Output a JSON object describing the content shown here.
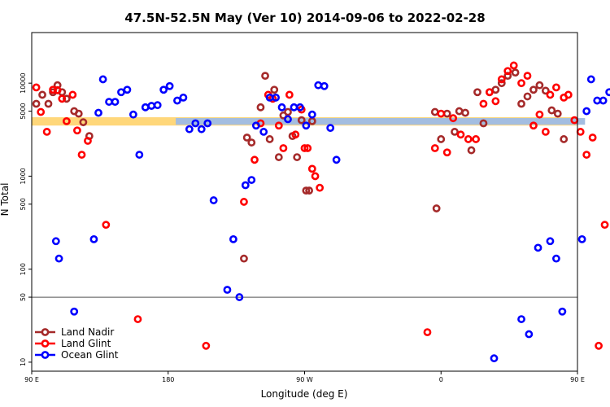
{
  "chart_data": {
    "type": "scatter",
    "title": "47.5N-52.5N May (Ver 10)   2014-09-06 to 2022-02-28",
    "xlabel": "Longitude (deg E)",
    "ylabel": "N Total",
    "x_scale": "linear",
    "y_scale": "log",
    "xlim": [
      90,
      450
    ],
    "ylim": [
      8,
      35000
    ],
    "x_ticks": [
      {
        "value": 90,
        "label": "90 E"
      },
      {
        "value": 180,
        "label": "180"
      },
      {
        "value": 270,
        "label": "90 W"
      },
      {
        "value": 360,
        "label": "0"
      },
      {
        "value": 450,
        "label": "90 E"
      },
      {
        "value": 540,
        "label": "180"
      }
    ],
    "y_ticks": [
      {
        "value": 10,
        "label": "10"
      },
      {
        "value": 50,
        "label": "50"
      },
      {
        "value": 100,
        "label": "100"
      },
      {
        "value": 500,
        "label": "500"
      },
      {
        "value": 1000,
        "label": "1000"
      },
      {
        "value": 5000,
        "label": "5000"
      },
      {
        "value": 10000,
        "label": "10000"
      }
    ],
    "reference_line": 50,
    "band": {
      "y_low": 3500,
      "y_high": 4300,
      "colors": [
        "#ffd77a",
        "#a3bde0"
      ]
    },
    "legend_position": "bottom-left",
    "series": [
      {
        "name": "Land Nadir",
        "color": "#a52a2a",
        "points": [
          [
            93,
            6000
          ],
          [
            97,
            7500
          ],
          [
            101,
            6000
          ],
          [
            104,
            8000
          ],
          [
            107,
            9500
          ],
          [
            110,
            8000
          ],
          [
            113,
            6800
          ],
          [
            118,
            5000
          ],
          [
            121,
            4700
          ],
          [
            124,
            3800
          ],
          [
            128,
            2700
          ],
          [
            230,
            130
          ],
          [
            232,
            2600
          ],
          [
            235,
            2300
          ],
          [
            241,
            5500
          ],
          [
            244,
            12000
          ],
          [
            247,
            2500
          ],
          [
            250,
            8500
          ],
          [
            253,
            1600
          ],
          [
            256,
            4500
          ],
          [
            259,
            4900
          ],
          [
            262,
            2700
          ],
          [
            265,
            1600
          ],
          [
            268,
            4000
          ],
          [
            271,
            700
          ],
          [
            273,
            700
          ],
          [
            275,
            3900
          ],
          [
            356,
            4900
          ],
          [
            357,
            450
          ],
          [
            360,
            2500
          ],
          [
            364,
            4700
          ],
          [
            369,
            3000
          ],
          [
            372,
            5000
          ],
          [
            376,
            4800
          ],
          [
            380,
            1900
          ],
          [
            384,
            8000
          ],
          [
            388,
            3700
          ],
          [
            392,
            8000
          ],
          [
            396,
            8500
          ],
          [
            400,
            10000
          ],
          [
            404,
            12000
          ],
          [
            409,
            13000
          ],
          [
            413,
            6000
          ],
          [
            417,
            7200
          ],
          [
            421,
            8500
          ],
          [
            425,
            9500
          ],
          [
            429,
            8300
          ],
          [
            433,
            5100
          ],
          [
            437,
            4700
          ],
          [
            441,
            2500
          ]
        ]
      },
      {
        "name": "Land Glint",
        "color": "#ff0000",
        "points": [
          [
            93,
            9000
          ],
          [
            96,
            4900
          ],
          [
            100,
            3000
          ],
          [
            104,
            8500
          ],
          [
            107,
            8400
          ],
          [
            110,
            6800
          ],
          [
            113,
            3900
          ],
          [
            117,
            7500
          ],
          [
            120,
            3100
          ],
          [
            123,
            1700
          ],
          [
            127,
            2400
          ],
          [
            139,
            300
          ],
          [
            160,
            29
          ],
          [
            205,
            15
          ],
          [
            230,
            530
          ],
          [
            237,
            1500
          ],
          [
            241,
            3700
          ],
          [
            246,
            7500
          ],
          [
            249,
            6800
          ],
          [
            253,
            3500
          ],
          [
            256,
            2000
          ],
          [
            260,
            7500
          ],
          [
            264,
            2800
          ],
          [
            268,
            5200
          ],
          [
            270,
            2000
          ],
          [
            272,
            2000
          ],
          [
            275,
            1200
          ],
          [
            277,
            1000
          ],
          [
            280,
            750
          ],
          [
            351,
            21
          ],
          [
            356,
            2000
          ],
          [
            360,
            4700
          ],
          [
            364,
            1800
          ],
          [
            368,
            4200
          ],
          [
            373,
            2800
          ],
          [
            378,
            2500
          ],
          [
            383,
            2500
          ],
          [
            388,
            6000
          ],
          [
            392,
            8000
          ],
          [
            396,
            6400
          ],
          [
            400,
            11000
          ],
          [
            404,
            13500
          ],
          [
            408,
            15500
          ],
          [
            413,
            10000
          ],
          [
            417,
            12000
          ],
          [
            421,
            3500
          ],
          [
            425,
            4600
          ],
          [
            429,
            3000
          ],
          [
            432,
            7500
          ],
          [
            436,
            9000
          ],
          [
            441,
            7000
          ],
          [
            444,
            7500
          ],
          [
            448,
            4000
          ],
          [
            452,
            3000
          ],
          [
            456,
            1700
          ],
          [
            460,
            2600
          ],
          [
            464,
            15
          ],
          [
            468,
            300
          ]
        ]
      },
      {
        "name": "Ocean Glint",
        "color": "#0000ff",
        "points": [
          [
            106,
            200
          ],
          [
            108,
            130
          ],
          [
            118,
            35
          ],
          [
            131,
            210
          ],
          [
            134,
            4800
          ],
          [
            137,
            11000
          ],
          [
            141,
            6300
          ],
          [
            145,
            6300
          ],
          [
            149,
            8000
          ],
          [
            153,
            8500
          ],
          [
            157,
            4600
          ],
          [
            161,
            1700
          ],
          [
            165,
            5500
          ],
          [
            169,
            5700
          ],
          [
            173,
            5800
          ],
          [
            177,
            8500
          ],
          [
            181,
            9300
          ],
          [
            186,
            6500
          ],
          [
            190,
            7000
          ],
          [
            194,
            3200
          ],
          [
            198,
            3700
          ],
          [
            202,
            3200
          ],
          [
            206,
            3700
          ],
          [
            210,
            550
          ],
          [
            219,
            60
          ],
          [
            223,
            210
          ],
          [
            227,
            50
          ],
          [
            231,
            800
          ],
          [
            235,
            910
          ],
          [
            238,
            3500
          ],
          [
            243,
            3000
          ],
          [
            247,
            7000
          ],
          [
            251,
            7000
          ],
          [
            255,
            5500
          ],
          [
            259,
            4100
          ],
          [
            263,
            5500
          ],
          [
            267,
            5500
          ],
          [
            271,
            3500
          ],
          [
            275,
            4600
          ],
          [
            279,
            9500
          ],
          [
            283,
            9300
          ],
          [
            287,
            3300
          ],
          [
            291,
            1500
          ],
          [
            395,
            11
          ],
          [
            413,
            29
          ],
          [
            418,
            20
          ],
          [
            424,
            170
          ],
          [
            432,
            200
          ],
          [
            436,
            130
          ],
          [
            440,
            35
          ],
          [
            453,
            210
          ],
          [
            456,
            5000
          ],
          [
            459,
            11000
          ],
          [
            463,
            6500
          ],
          [
            467,
            6500
          ],
          [
            471,
            8000
          ],
          [
            475,
            8400
          ],
          [
            479,
            4700
          ],
          [
            483,
            1700
          ]
        ]
      }
    ]
  }
}
